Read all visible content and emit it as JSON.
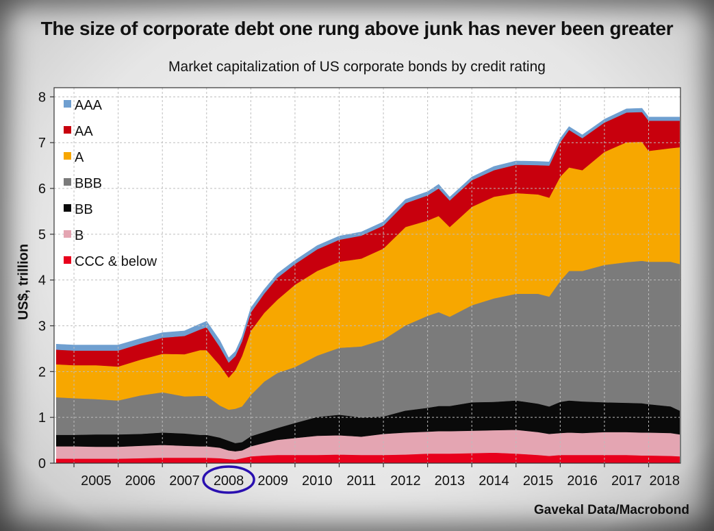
{
  "title": "The size of corporate debt one rung above junk has never been greater",
  "subtitle": "Market capitalization of US corporate bonds by credit rating",
  "source": "Gavekal Data/Macrobond",
  "highlight_year": "2008",
  "highlight_color": "#2a10b0",
  "chart_data": {
    "type": "area",
    "stacked": true,
    "ylabel": "US$, trillion",
    "ylim": [
      0,
      8.2
    ],
    "xlim": [
      2004.55,
      2018.72
    ],
    "y_ticks": [
      0,
      1,
      2,
      3,
      4,
      5,
      6,
      7,
      8
    ],
    "x_tick_labels": [
      "2005",
      "2006",
      "2007",
      "2008",
      "2009",
      "2010",
      "2011",
      "2012",
      "2013",
      "2014",
      "2015",
      "2016",
      "2017",
      "2018"
    ],
    "grid": true,
    "legend_position": "top-left",
    "x": [
      2004.6,
      2005.0,
      2005.5,
      2006.0,
      2006.5,
      2007.0,
      2007.5,
      2007.85,
      2008.0,
      2008.3,
      2008.5,
      2008.65,
      2008.8,
      2009.0,
      2009.3,
      2009.6,
      2010.0,
      2010.5,
      2011.0,
      2011.5,
      2012.0,
      2012.5,
      2013.0,
      2013.25,
      2013.5,
      2014.0,
      2014.5,
      2015.0,
      2015.5,
      2015.75,
      2016.0,
      2016.2,
      2016.5,
      2017.0,
      2017.5,
      2017.85,
      2018.0,
      2018.5,
      2018.7
    ],
    "series": [
      {
        "name": "CCC & below",
        "color": "#e8001c",
        "values": [
          0.1,
          0.1,
          0.1,
          0.1,
          0.11,
          0.12,
          0.12,
          0.12,
          0.12,
          0.11,
          0.09,
          0.08,
          0.11,
          0.15,
          0.17,
          0.18,
          0.18,
          0.18,
          0.19,
          0.18,
          0.18,
          0.19,
          0.21,
          0.21,
          0.21,
          0.22,
          0.23,
          0.21,
          0.18,
          0.16,
          0.18,
          0.18,
          0.18,
          0.18,
          0.18,
          0.17,
          0.17,
          0.16,
          0.15
        ]
      },
      {
        "name": "B",
        "color": "#e4a5b2",
        "values": [
          0.27,
          0.27,
          0.26,
          0.26,
          0.27,
          0.28,
          0.26,
          0.25,
          0.25,
          0.23,
          0.19,
          0.18,
          0.17,
          0.22,
          0.27,
          0.33,
          0.37,
          0.42,
          0.42,
          0.4,
          0.46,
          0.48,
          0.48,
          0.49,
          0.49,
          0.49,
          0.49,
          0.52,
          0.5,
          0.48,
          0.48,
          0.49,
          0.48,
          0.5,
          0.5,
          0.5,
          0.5,
          0.5,
          0.48
        ]
      },
      {
        "name": "BB",
        "color": "#0a0a0a",
        "values": [
          0.25,
          0.25,
          0.27,
          0.27,
          0.26,
          0.27,
          0.27,
          0.25,
          0.25,
          0.22,
          0.21,
          0.18,
          0.18,
          0.22,
          0.24,
          0.26,
          0.33,
          0.41,
          0.45,
          0.42,
          0.38,
          0.48,
          0.52,
          0.55,
          0.55,
          0.62,
          0.62,
          0.64,
          0.62,
          0.6,
          0.68,
          0.7,
          0.69,
          0.65,
          0.64,
          0.64,
          0.62,
          0.58,
          0.52
        ]
      },
      {
        "name": "BBB",
        "color": "#7b7b7b",
        "values": [
          0.82,
          0.8,
          0.77,
          0.74,
          0.84,
          0.88,
          0.81,
          0.85,
          0.85,
          0.7,
          0.68,
          0.75,
          0.78,
          0.9,
          1.1,
          1.2,
          1.22,
          1.34,
          1.46,
          1.55,
          1.68,
          1.86,
          2.01,
          2.05,
          1.95,
          2.12,
          2.26,
          2.33,
          2.4,
          2.4,
          2.64,
          2.83,
          2.85,
          3.0,
          3.07,
          3.11,
          3.11,
          3.16,
          3.2
        ]
      },
      {
        "name": "A",
        "color": "#f7a700",
        "values": [
          0.72,
          0.72,
          0.74,
          0.74,
          0.78,
          0.84,
          0.92,
          1.0,
          1.0,
          0.88,
          0.7,
          0.85,
          1.1,
          1.4,
          1.5,
          1.6,
          1.8,
          1.85,
          1.88,
          1.92,
          1.99,
          2.15,
          2.08,
          2.1,
          1.96,
          2.15,
          2.22,
          2.2,
          2.17,
          2.16,
          2.28,
          2.26,
          2.2,
          2.47,
          2.62,
          2.6,
          2.42,
          2.48,
          2.55
        ]
      },
      {
        "name": "AA",
        "color": "#c8000d",
        "values": [
          0.32,
          0.32,
          0.32,
          0.35,
          0.35,
          0.35,
          0.4,
          0.45,
          0.5,
          0.4,
          0.33,
          0.3,
          0.32,
          0.4,
          0.42,
          0.48,
          0.45,
          0.47,
          0.48,
          0.5,
          0.5,
          0.52,
          0.55,
          0.6,
          0.58,
          0.58,
          0.58,
          0.62,
          0.64,
          0.7,
          0.75,
          0.82,
          0.7,
          0.64,
          0.65,
          0.65,
          0.66,
          0.6,
          0.58
        ]
      },
      {
        "name": "AAA",
        "color": "#6f9fd0",
        "values": [
          0.12,
          0.12,
          0.12,
          0.12,
          0.11,
          0.11,
          0.11,
          0.12,
          0.13,
          0.14,
          0.1,
          0.1,
          0.1,
          0.1,
          0.09,
          0.09,
          0.08,
          0.08,
          0.08,
          0.08,
          0.08,
          0.08,
          0.08,
          0.09,
          0.07,
          0.07,
          0.08,
          0.08,
          0.08,
          0.08,
          0.08,
          0.07,
          0.07,
          0.07,
          0.08,
          0.08,
          0.08,
          0.08,
          0.08
        ]
      }
    ]
  }
}
